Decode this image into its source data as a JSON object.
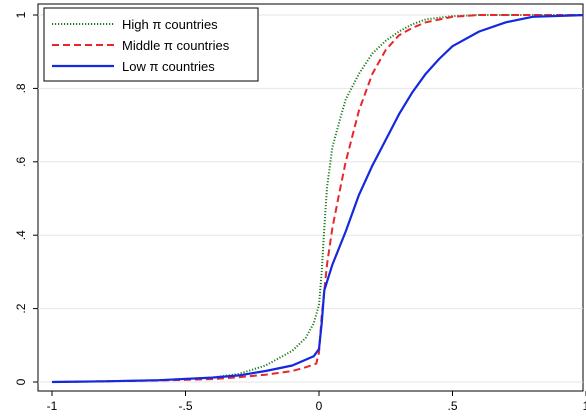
{
  "chart_data": {
    "type": "line",
    "title": "",
    "xlabel": "",
    "ylabel": "",
    "xlim": [
      -1,
      1
    ],
    "ylim": [
      0,
      1
    ],
    "x_ticks": [
      -1,
      -0.5,
      0,
      0.5,
      1
    ],
    "x_tick_labels": [
      "-1",
      "-.5",
      "0",
      ".5",
      "1"
    ],
    "y_ticks": [
      0,
      0.2,
      0.4,
      0.6,
      0.8,
      1
    ],
    "y_tick_labels": [
      "0",
      ".2",
      ".4",
      ".6",
      ".8",
      "1"
    ],
    "grid": "horizontal",
    "legend_position": "top-left",
    "series": [
      {
        "name": "High π countries",
        "color": "#1f7a1f",
        "line_style": "dotted",
        "points": [
          [
            -1,
            0
          ],
          [
            -0.8,
            0.002
          ],
          [
            -0.6,
            0.005
          ],
          [
            -0.4,
            0.012
          ],
          [
            -0.3,
            0.022
          ],
          [
            -0.2,
            0.045
          ],
          [
            -0.1,
            0.085
          ],
          [
            -0.05,
            0.12
          ],
          [
            -0.02,
            0.16
          ],
          [
            0,
            0.21
          ],
          [
            0.01,
            0.3
          ],
          [
            0.02,
            0.42
          ],
          [
            0.03,
            0.53
          ],
          [
            0.05,
            0.64
          ],
          [
            0.08,
            0.72
          ],
          [
            0.1,
            0.77
          ],
          [
            0.15,
            0.84
          ],
          [
            0.2,
            0.895
          ],
          [
            0.25,
            0.93
          ],
          [
            0.3,
            0.955
          ],
          [
            0.35,
            0.975
          ],
          [
            0.4,
            0.988
          ],
          [
            0.5,
            0.997
          ],
          [
            0.6,
            1.0
          ],
          [
            1,
            1.0
          ]
        ]
      },
      {
        "name": "Middle π countries",
        "color": "#e8262b",
        "line_style": "dashed",
        "points": [
          [
            -1,
            0
          ],
          [
            -0.8,
            0.002
          ],
          [
            -0.6,
            0.004
          ],
          [
            -0.4,
            0.008
          ],
          [
            -0.3,
            0.013
          ],
          [
            -0.2,
            0.02
          ],
          [
            -0.1,
            0.03
          ],
          [
            -0.05,
            0.04
          ],
          [
            -0.01,
            0.05
          ],
          [
            0,
            0.08
          ],
          [
            0.01,
            0.18
          ],
          [
            0.03,
            0.32
          ],
          [
            0.05,
            0.42
          ],
          [
            0.08,
            0.53
          ],
          [
            0.1,
            0.6
          ],
          [
            0.15,
            0.74
          ],
          [
            0.2,
            0.84
          ],
          [
            0.25,
            0.905
          ],
          [
            0.3,
            0.945
          ],
          [
            0.35,
            0.965
          ],
          [
            0.4,
            0.98
          ],
          [
            0.5,
            0.995
          ],
          [
            0.6,
            1.0
          ],
          [
            1,
            1.0
          ]
        ]
      },
      {
        "name": "Low π countries",
        "color": "#1428e0",
        "line_style": "solid",
        "points": [
          [
            -1,
            0
          ],
          [
            -0.8,
            0.002
          ],
          [
            -0.6,
            0.005
          ],
          [
            -0.4,
            0.012
          ],
          [
            -0.3,
            0.018
          ],
          [
            -0.2,
            0.03
          ],
          [
            -0.1,
            0.045
          ],
          [
            -0.02,
            0.07
          ],
          [
            0,
            0.09
          ],
          [
            0.01,
            0.16
          ],
          [
            0.02,
            0.25
          ],
          [
            0.05,
            0.32
          ],
          [
            0.1,
            0.41
          ],
          [
            0.15,
            0.51
          ],
          [
            0.2,
            0.59
          ],
          [
            0.25,
            0.66
          ],
          [
            0.3,
            0.73
          ],
          [
            0.35,
            0.79
          ],
          [
            0.4,
            0.84
          ],
          [
            0.45,
            0.88
          ],
          [
            0.5,
            0.915
          ],
          [
            0.6,
            0.955
          ],
          [
            0.7,
            0.98
          ],
          [
            0.8,
            0.995
          ],
          [
            1,
            1.0
          ]
        ]
      }
    ]
  }
}
